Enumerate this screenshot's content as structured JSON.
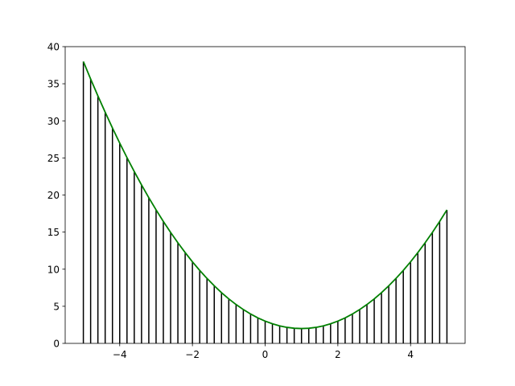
{
  "chart_data": {
    "type": "stem",
    "title": "",
    "xlabel": "",
    "ylabel": "",
    "xlim": [
      -5.5,
      5.5
    ],
    "ylim": [
      0,
      40
    ],
    "grid": false,
    "x_ticks": [
      -4,
      -2,
      0,
      2,
      4
    ],
    "x_tick_labels": [
      "−4",
      "−2",
      "0",
      "2",
      "4"
    ],
    "y_ticks": [
      0,
      5,
      10,
      15,
      20,
      25,
      30,
      35,
      40
    ],
    "y_tick_labels": [
      "0",
      "5",
      "10",
      "15",
      "20",
      "25",
      "30",
      "35",
      "40"
    ],
    "series": [
      {
        "kind": "vertical-lines",
        "color": "#000000",
        "x": [
          -5,
          -4.8,
          -4.6,
          -4.4,
          -4.2,
          -4,
          -3.8,
          -3.6,
          -3.4,
          -3.2,
          -3,
          -2.8,
          -2.6,
          -2.4,
          -2.2,
          -2,
          -1.8,
          -1.6,
          -1.4,
          -1.2,
          -1,
          -0.8,
          -0.6,
          -0.4,
          -0.2,
          0,
          0.2,
          0.4,
          0.6,
          0.8,
          1,
          1.2,
          1.4,
          1.6,
          1.8,
          2,
          2.2,
          2.4,
          2.6,
          2.8,
          3,
          3.2,
          3.4,
          3.6,
          3.8,
          4,
          4.2,
          4.4,
          4.6,
          4.8,
          5
        ],
        "y": [
          38,
          35.64,
          33.36,
          31.16,
          29.04,
          27,
          25.04,
          23.16,
          21.36,
          19.64,
          18,
          16.44,
          14.96,
          13.56,
          12.24,
          11,
          9.84,
          8.76,
          7.76,
          6.84,
          6,
          5.24,
          4.56,
          3.96,
          3.44,
          3,
          2.64,
          2.36,
          2.16,
          2.04,
          2,
          2.04,
          2.16,
          2.36,
          2.64,
          3,
          3.44,
          3.96,
          4.56,
          5.24,
          6,
          6.84,
          7.76,
          8.76,
          9.84,
          11,
          12.24,
          13.56,
          14.96,
          16.44,
          18
        ]
      },
      {
        "kind": "line",
        "color": "#008000",
        "x": [
          -5,
          -4.8,
          -4.6,
          -4.4,
          -4.2,
          -4,
          -3.8,
          -3.6,
          -3.4,
          -3.2,
          -3,
          -2.8,
          -2.6,
          -2.4,
          -2.2,
          -2,
          -1.8,
          -1.6,
          -1.4,
          -1.2,
          -1,
          -0.8,
          -0.6,
          -0.4,
          -0.2,
          0,
          0.2,
          0.4,
          0.6,
          0.8,
          1,
          1.2,
          1.4,
          1.6,
          1.8,
          2,
          2.2,
          2.4,
          2.6,
          2.8,
          3,
          3.2,
          3.4,
          3.6,
          3.8,
          4,
          4.2,
          4.4,
          4.6,
          4.8,
          5
        ],
        "y": [
          38,
          35.64,
          33.36,
          31.16,
          29.04,
          27,
          25.04,
          23.16,
          21.36,
          19.64,
          18,
          16.44,
          14.96,
          13.56,
          12.24,
          11,
          9.84,
          8.76,
          7.76,
          6.84,
          6,
          5.24,
          4.56,
          3.96,
          3.44,
          3,
          2.64,
          2.36,
          2.16,
          2.04,
          2,
          2.04,
          2.16,
          2.36,
          2.64,
          3,
          3.44,
          3.96,
          4.56,
          5.24,
          6,
          6.84,
          7.76,
          8.76,
          9.84,
          11,
          12.24,
          13.56,
          14.96,
          16.44,
          18
        ]
      }
    ]
  }
}
